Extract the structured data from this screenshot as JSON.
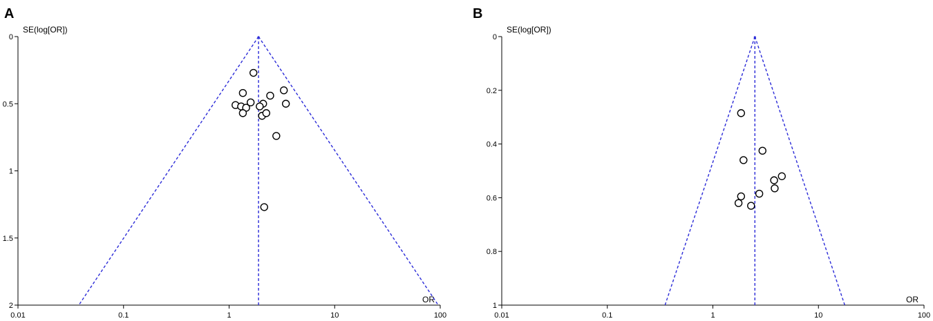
{
  "chart_data": [
    {
      "type": "scatter",
      "panel_label": "A",
      "ylabel": "SE(log[OR])",
      "xlabel": "OR",
      "x_scale": "log",
      "xlim": [
        0.01,
        100
      ],
      "ylim": [
        0,
        2
      ],
      "y_inverted": true,
      "x_ticks": [
        "0.01",
        "0.1",
        "1",
        "10",
        "100"
      ],
      "y_ticks": [
        "0",
        "0.5",
        "1",
        "1.5",
        "2"
      ],
      "x_tick_values": [
        0.01,
        0.1,
        1,
        10,
        100
      ],
      "y_tick_values": [
        0,
        0.5,
        1,
        1.5,
        2
      ],
      "pooled_or": 1.9,
      "points": [
        {
          "or": 1.7,
          "se": 0.27
        },
        {
          "or": 1.35,
          "se": 0.42
        },
        {
          "or": 3.3,
          "se": 0.4
        },
        {
          "or": 2.45,
          "se": 0.44
        },
        {
          "or": 1.15,
          "se": 0.51
        },
        {
          "or": 1.3,
          "se": 0.52
        },
        {
          "or": 1.45,
          "se": 0.53
        },
        {
          "or": 1.6,
          "se": 0.49
        },
        {
          "or": 2.1,
          "se": 0.5
        },
        {
          "or": 1.95,
          "se": 0.52
        },
        {
          "or": 3.45,
          "se": 0.5
        },
        {
          "or": 1.35,
          "se": 0.57
        },
        {
          "or": 2.05,
          "se": 0.59
        },
        {
          "or": 2.25,
          "se": 0.57
        },
        {
          "or": 2.8,
          "se": 0.74
        },
        {
          "or": 2.15,
          "se": 1.27
        }
      ]
    },
    {
      "type": "scatter",
      "panel_label": "B",
      "ylabel": "SE(log[OR])",
      "xlabel": "OR",
      "x_scale": "log",
      "xlim": [
        0.01,
        100
      ],
      "ylim": [
        0,
        1
      ],
      "y_inverted": true,
      "x_ticks": [
        "0.01",
        "0.1",
        "1",
        "10",
        "100"
      ],
      "y_ticks": [
        "0",
        "0.2",
        "0.4",
        "0.6",
        "0.8",
        "1"
      ],
      "x_tick_values": [
        0.01,
        0.1,
        1,
        10,
        100
      ],
      "y_tick_values": [
        0,
        0.2,
        0.4,
        0.6,
        0.8,
        1
      ],
      "pooled_or": 2.5,
      "points": [
        {
          "or": 1.85,
          "se": 0.285
        },
        {
          "or": 2.95,
          "se": 0.425
        },
        {
          "or": 1.95,
          "se": 0.46
        },
        {
          "or": 4.5,
          "se": 0.52
        },
        {
          "or": 3.8,
          "se": 0.535
        },
        {
          "or": 3.85,
          "se": 0.565
        },
        {
          "or": 1.85,
          "se": 0.595
        },
        {
          "or": 2.75,
          "se": 0.585
        },
        {
          "or": 1.75,
          "se": 0.62
        },
        {
          "or": 2.3,
          "se": 0.63
        }
      ]
    }
  ],
  "colors": {
    "funnel": "#2a2ad8",
    "axis": "#000000",
    "marker_fill": "#ffffff",
    "marker_stroke": "#000000"
  }
}
